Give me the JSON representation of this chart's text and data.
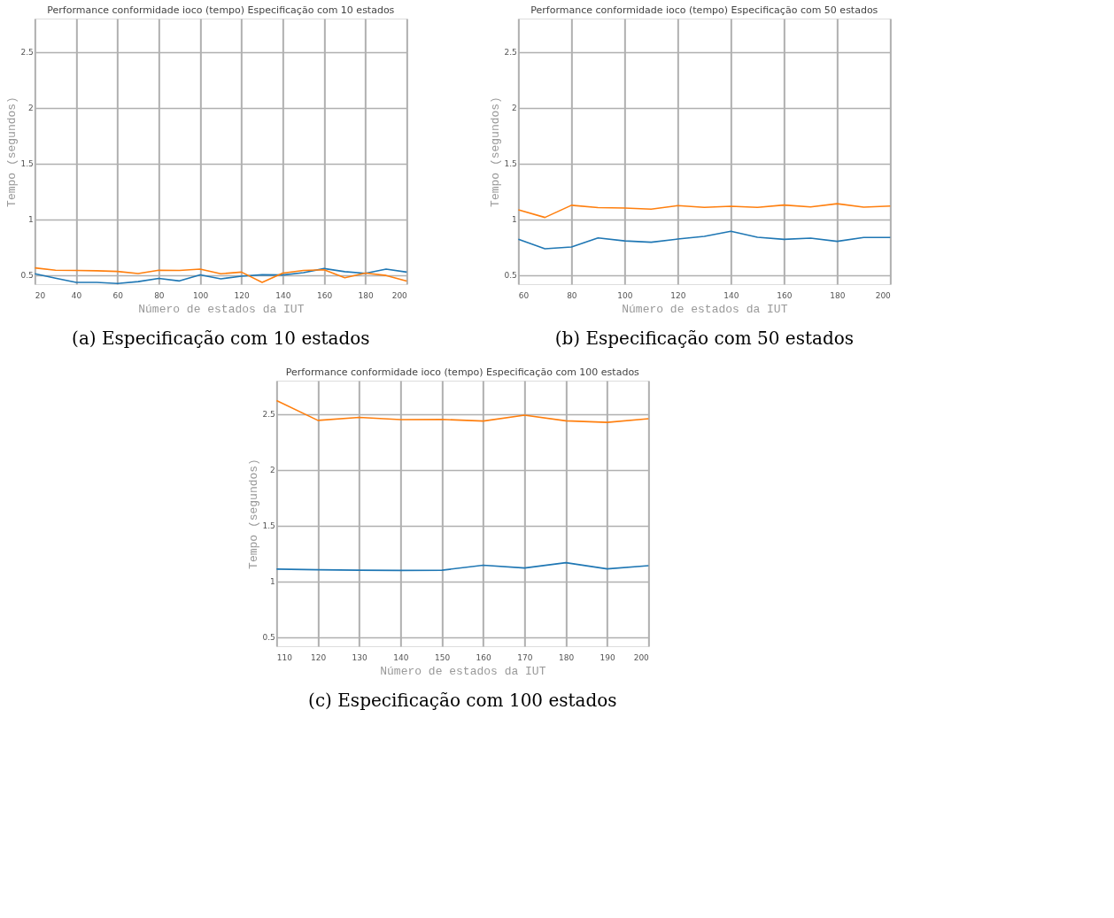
{
  "chart_data": [
    {
      "type": "line",
      "title": "Performance conformidade ioco (tempo) Especificação com 10 estados",
      "xlabel": "Número de estados da IUT",
      "ylabel": "Tempo (segundos)",
      "x": [
        20,
        30,
        40,
        50,
        60,
        70,
        80,
        90,
        100,
        110,
        120,
        130,
        140,
        150,
        160,
        170,
        180,
        190,
        200
      ],
      "xlim": [
        20,
        200
      ],
      "xticks": [
        20,
        40,
        60,
        80,
        100,
        120,
        140,
        160,
        180,
        200
      ],
      "ylim": [
        0.42,
        2.8
      ],
      "yticks": [
        0.5,
        1,
        1.5,
        2,
        2.5
      ],
      "grid": true,
      "annotations": [
        "(a) Especificação com 10 estados"
      ],
      "series": [
        {
          "color": "#1f77b4",
          "values": [
            0.513,
            0.474,
            0.436,
            0.436,
            0.426,
            0.443,
            0.472,
            0.449,
            0.504,
            0.468,
            0.491,
            0.504,
            0.502,
            0.523,
            0.56,
            0.532,
            0.517,
            0.555,
            0.528
          ]
        },
        {
          "color": "#ff7f0e",
          "values": [
            0.566,
            0.545,
            0.543,
            0.54,
            0.534,
            0.515,
            0.545,
            0.543,
            0.555,
            0.513,
            0.528,
            0.436,
            0.519,
            0.543,
            0.549,
            0.477,
            0.519,
            0.498,
            0.447
          ]
        }
      ]
    },
    {
      "type": "line",
      "title": "Performance conformidade ioco (tempo) Especificação com  50 estados",
      "xlabel": "Número de estados da IUT",
      "ylabel": "Tempo (segundos)",
      "x": [
        60,
        70,
        80,
        90,
        100,
        110,
        120,
        130,
        140,
        150,
        160,
        170,
        180,
        190,
        200
      ],
      "xlim": [
        60,
        200
      ],
      "xticks": [
        60,
        80,
        100,
        120,
        140,
        160,
        180,
        200
      ],
      "ylim": [
        0.42,
        2.8
      ],
      "yticks": [
        0.5,
        1,
        1.5,
        2,
        2.5
      ],
      "grid": true,
      "annotations": [
        "(b) Especificação com 50 estados"
      ],
      "series": [
        {
          "color": "#1f77b4",
          "values": [
            0.822,
            0.737,
            0.753,
            0.835,
            0.808,
            0.796,
            0.824,
            0.849,
            0.894,
            0.841,
            0.822,
            0.833,
            0.804,
            0.839,
            0.839
          ]
        },
        {
          "color": "#ff7f0e",
          "values": [
            1.086,
            1.018,
            1.127,
            1.106,
            1.102,
            1.092,
            1.124,
            1.108,
            1.118,
            1.108,
            1.129,
            1.112,
            1.141,
            1.11,
            1.12
          ]
        }
      ]
    },
    {
      "type": "line",
      "title": "Performance conformidade ioco (tempo) Especificação com  100 estados",
      "xlabel": "Número de estados da IUT",
      "ylabel": "Tempo (segundos)",
      "x": [
        110,
        120,
        130,
        140,
        150,
        160,
        170,
        180,
        190,
        200
      ],
      "xlim": [
        110,
        200
      ],
      "xticks": [
        110,
        120,
        130,
        140,
        150,
        160,
        170,
        180,
        190,
        200
      ],
      "ylim": [
        0.42,
        2.8
      ],
      "yticks": [
        0.5,
        1,
        1.5,
        2,
        2.5
      ],
      "grid": true,
      "annotations": [
        "(c) Especificação com 100 estados"
      ],
      "series": [
        {
          "color": "#1f77b4",
          "values": [
            1.111,
            1.105,
            1.101,
            1.099,
            1.101,
            1.146,
            1.121,
            1.169,
            1.113,
            1.142
          ]
        },
        {
          "color": "#ff7f0e",
          "values": [
            2.621,
            2.444,
            2.471,
            2.451,
            2.453,
            2.438,
            2.49,
            2.44,
            2.426,
            2.459
          ]
        }
      ]
    }
  ]
}
